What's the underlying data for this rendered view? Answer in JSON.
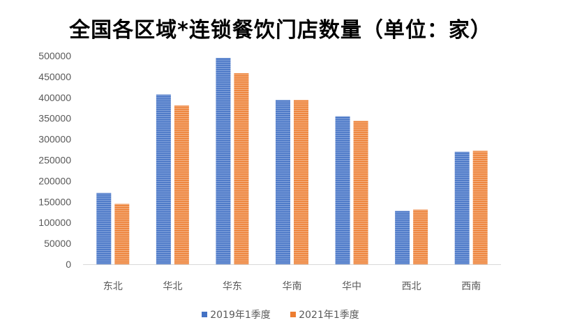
{
  "chart_data": {
    "type": "bar",
    "title": "全国各区域*连锁餐饮门店数量（单位：家）",
    "categories": [
      "东北",
      "华北",
      "华东",
      "华南",
      "华中",
      "西北",
      "西南"
    ],
    "series": [
      {
        "name": "2019年1季度",
        "color": "#4472C4",
        "values": [
          171000,
          407000,
          495000,
          394000,
          355000,
          128000,
          270000
        ]
      },
      {
        "name": "2021年1季度",
        "color": "#ED7D31",
        "values": [
          145000,
          381000,
          458000,
          394000,
          344000,
          131000,
          272000
        ]
      }
    ],
    "ylim": [
      0,
      500000
    ],
    "yticks": [
      "0",
      "50000",
      "100000",
      "150000",
      "200000",
      "250000",
      "300000",
      "350000",
      "400000",
      "450000",
      "500000"
    ],
    "xlabel": "",
    "ylabel": "",
    "grid": false,
    "legend_position": "bottom"
  }
}
